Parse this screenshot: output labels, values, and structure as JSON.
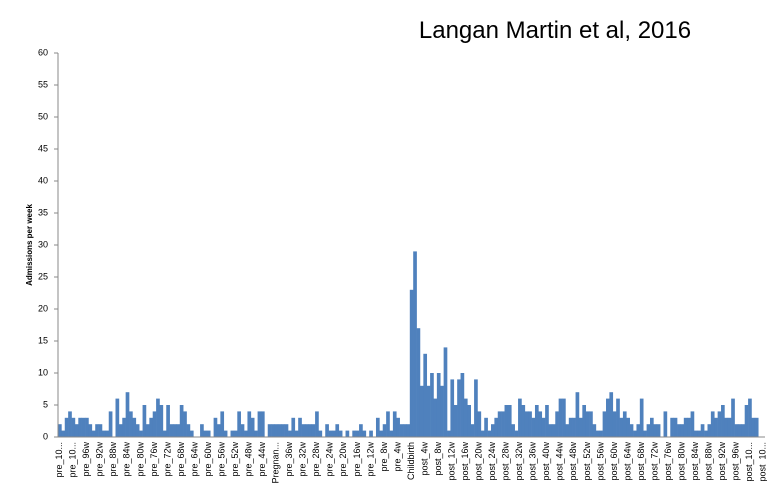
{
  "chart_data": {
    "type": "bar",
    "annotation": "Langan Martin et al,  2016",
    "ylabel": "Admissions per week",
    "color": "#4f81bd",
    "ylim": [
      0,
      60
    ],
    "yticks": [
      0,
      5,
      10,
      15,
      20,
      25,
      30,
      35,
      40,
      45,
      50,
      55,
      60
    ],
    "categories": [
      "pre_10...",
      null,
      null,
      null,
      "pre_10...",
      null,
      null,
      null,
      "pre_96w",
      null,
      null,
      null,
      "pre_92w",
      null,
      null,
      null,
      "pre_88w",
      null,
      null,
      null,
      "pre_84w",
      null,
      null,
      null,
      "pre_80w",
      null,
      null,
      null,
      "pre_76w",
      null,
      null,
      null,
      "pre_72w",
      null,
      null,
      null,
      "pre_68w",
      null,
      null,
      null,
      "pre_64w",
      null,
      null,
      null,
      "pre_60w",
      null,
      null,
      null,
      "pre_56w",
      null,
      null,
      null,
      "pre_52w",
      null,
      null,
      null,
      "pre_48w",
      null,
      null,
      null,
      "pre_44w",
      null,
      null,
      null,
      "Pregnan...",
      null,
      null,
      null,
      "pre_36w",
      null,
      null,
      null,
      "pre_32w",
      null,
      null,
      null,
      "pre_28w",
      null,
      null,
      null,
      "pre_24w",
      null,
      null,
      null,
      "pre_20w",
      null,
      null,
      null,
      "pre_16w",
      null,
      null,
      null,
      "pre_12w",
      null,
      null,
      null,
      "pre_8w",
      null,
      null,
      null,
      "pre_4w",
      null,
      null,
      null,
      "Childbirth",
      null,
      null,
      null,
      "post_4w",
      null,
      null,
      null,
      "post_8w",
      null,
      null,
      null,
      "post_12w",
      null,
      null,
      null,
      "post_16w",
      null,
      null,
      null,
      "post_20w",
      null,
      null,
      null,
      "post_24w",
      null,
      null,
      null,
      "post_28w",
      null,
      null,
      null,
      "post_32w",
      null,
      null,
      null,
      "post_36w",
      null,
      null,
      null,
      "post_40w",
      null,
      null,
      null,
      "post_44w",
      null,
      null,
      null,
      "post_48w",
      null,
      null,
      null,
      "post_52w",
      null,
      null,
      null,
      "post_56w",
      null,
      null,
      null,
      "post_60w",
      null,
      null,
      null,
      "post_64w",
      null,
      null,
      null,
      "post_68w",
      null,
      null,
      null,
      "post_72w",
      null,
      null,
      null,
      "post_76w",
      null,
      null,
      null,
      "post_80w",
      null,
      null,
      null,
      "post_84w",
      null,
      null,
      null,
      "post_88w",
      null,
      null,
      null,
      "post_92w",
      null,
      null,
      null,
      "post_96w",
      null,
      null,
      null,
      "post_10...",
      null,
      null,
      null,
      "post_10..."
    ],
    "values": [
      2,
      1,
      3,
      4,
      3,
      2,
      3,
      3,
      3,
      2,
      1,
      2,
      2,
      1,
      1,
      4,
      0,
      6,
      2,
      3,
      7,
      4,
      3,
      2,
      1,
      5,
      2,
      3,
      4,
      6,
      5,
      1,
      5,
      2,
      2,
      2,
      5,
      4,
      2,
      1,
      0,
      0,
      2,
      1,
      1,
      0,
      3,
      2,
      4,
      1,
      0,
      1,
      1,
      4,
      2,
      1,
      4,
      3,
      1,
      4,
      4,
      0,
      2,
      2,
      2,
      2,
      2,
      2,
      1,
      3,
      1,
      3,
      2,
      2,
      2,
      2,
      4,
      1,
      0,
      2,
      1,
      1,
      2,
      1,
      0,
      1,
      0,
      1,
      1,
      2,
      1,
      0,
      1,
      0,
      3,
      1,
      2,
      4,
      1,
      4,
      3,
      2,
      2,
      2,
      23,
      29,
      17,
      8,
      13,
      8,
      10,
      6,
      10,
      8,
      14,
      1,
      9,
      5,
      9,
      10,
      6,
      5,
      2,
      9,
      4,
      1,
      3,
      1,
      2,
      3,
      4,
      4,
      5,
      5,
      2,
      1,
      6,
      5,
      4,
      4,
      3,
      5,
      4,
      3,
      5,
      2,
      2,
      4,
      6,
      6,
      2,
      3,
      3,
      7,
      3,
      5,
      4,
      4,
      2,
      1,
      1,
      4,
      6,
      7,
      4,
      6,
      3,
      4,
      3,
      2,
      1,
      2,
      6,
      1,
      2,
      3,
      2,
      2,
      0,
      4,
      0,
      3,
      3,
      2,
      2,
      3,
      3,
      4,
      1,
      1,
      2,
      1,
      2,
      4,
      3,
      4,
      5,
      3,
      3,
      6,
      2,
      2,
      2,
      5,
      6,
      3,
      3,
      0,
      0
    ]
  }
}
